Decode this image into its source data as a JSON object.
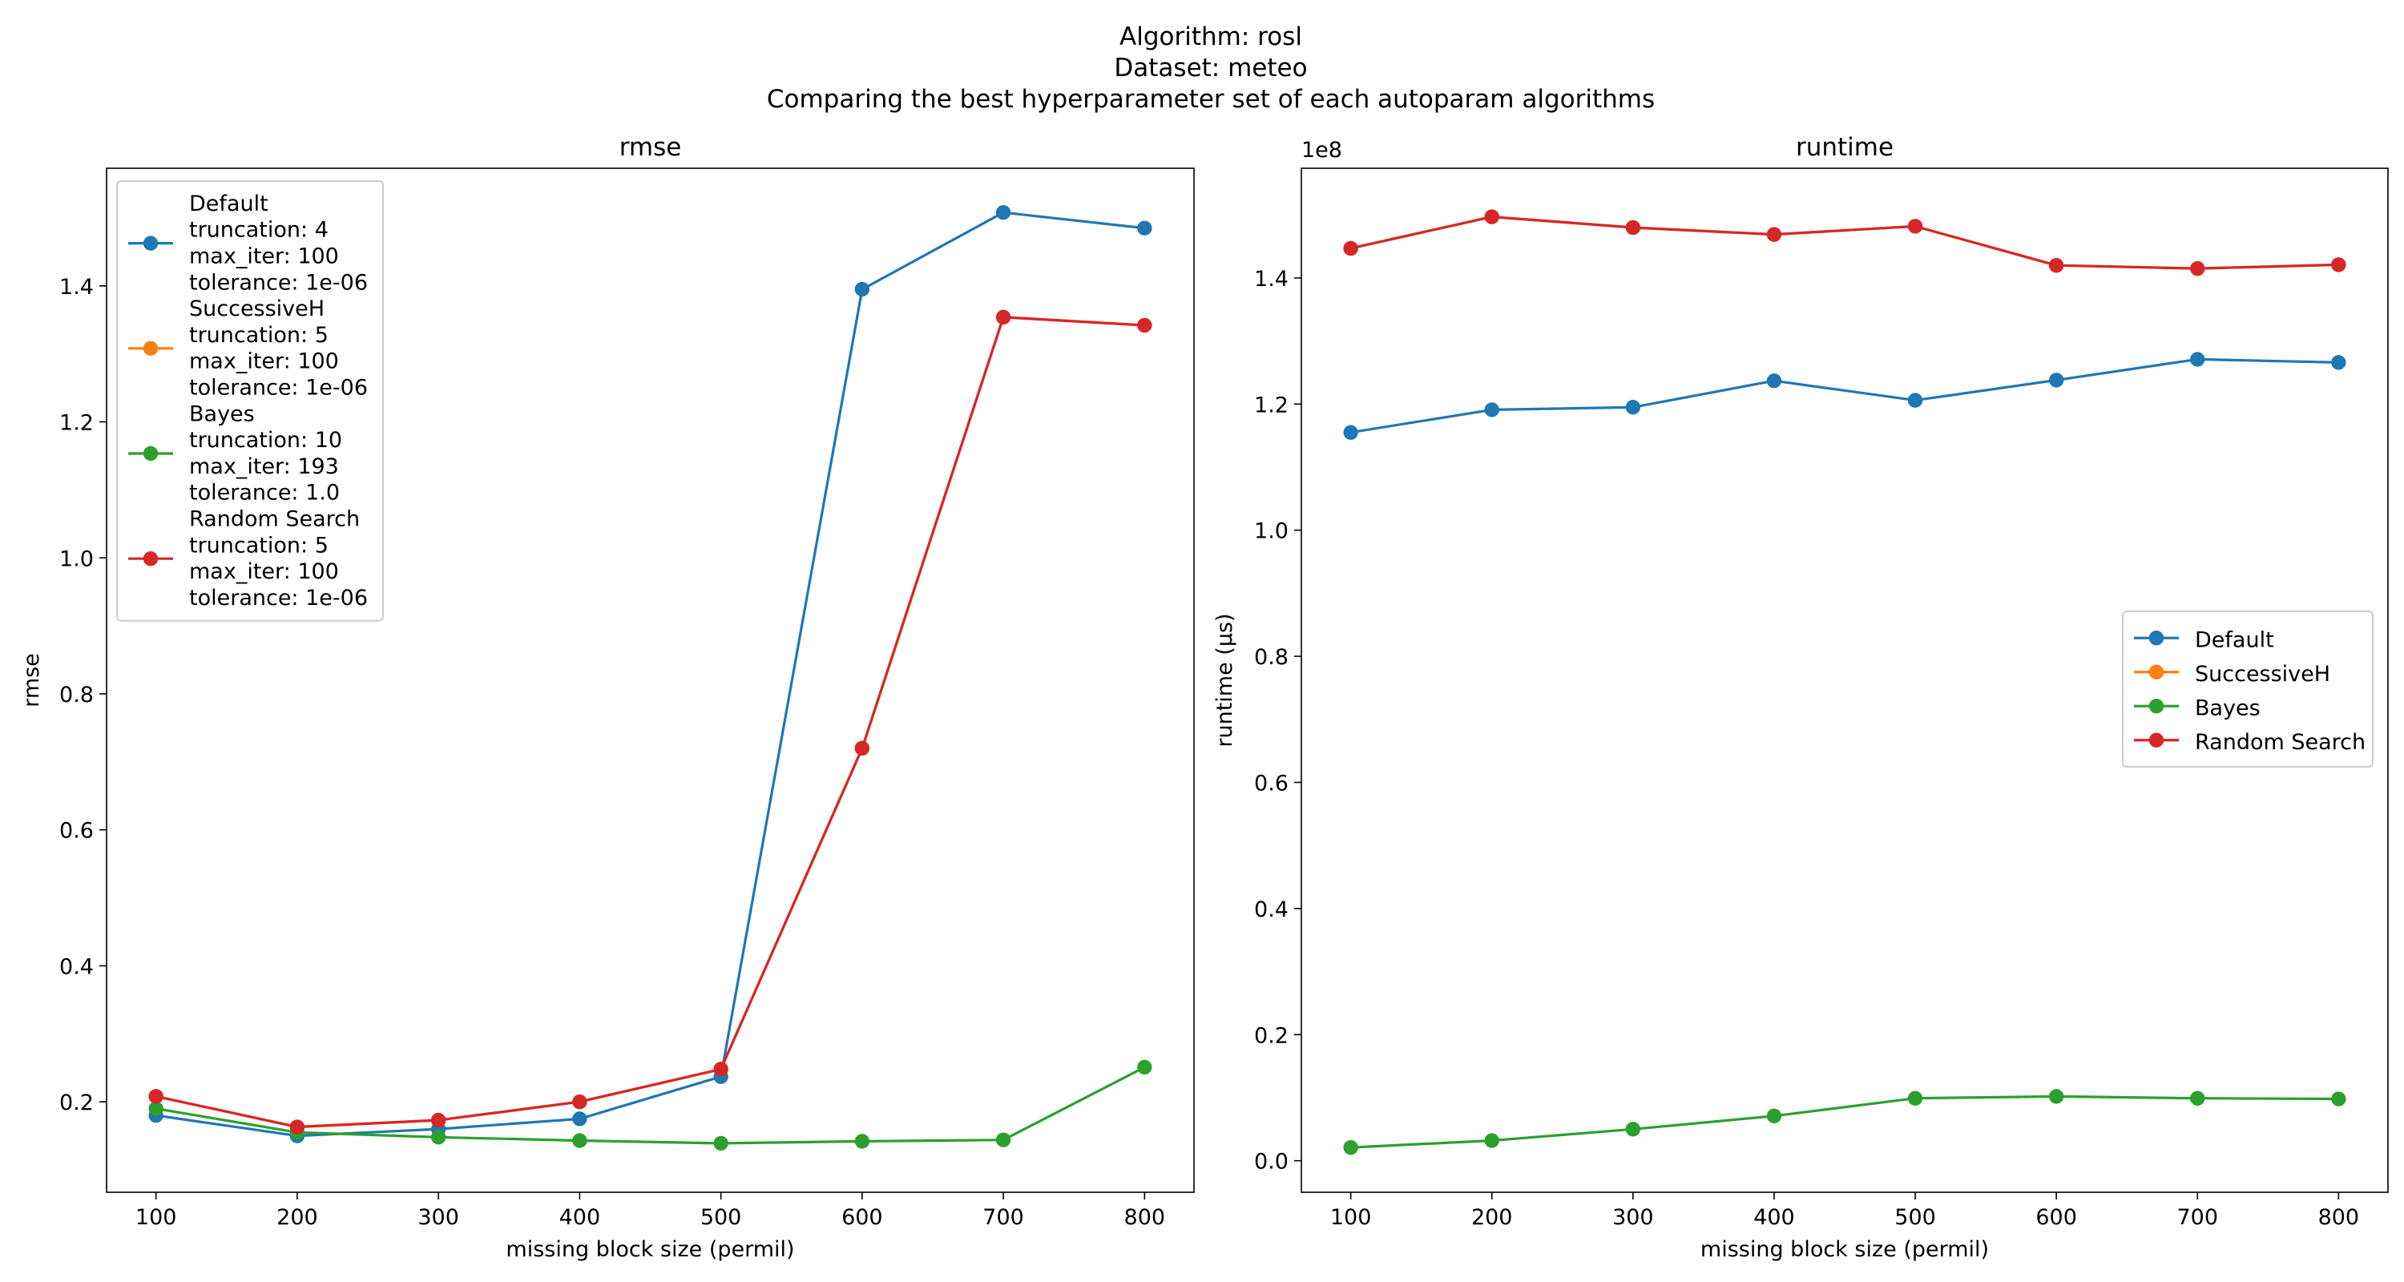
{
  "suptitle": {
    "line1": "Algorithm: rosl",
    "line2": "Dataset: meteo",
    "line3": "Comparing the best hyperparameter set of each autoparam algorithms"
  },
  "colors": {
    "default": "#1f77b4",
    "successiveh": "#ff7f0e",
    "bayes": "#2ca02c",
    "random_search": "#d62728"
  },
  "chart_data": [
    {
      "type": "line",
      "title": "rmse",
      "xlabel": "missing block size (permil)",
      "ylabel": "rmse",
      "x": [
        100,
        200,
        300,
        400,
        500,
        600,
        700,
        800
      ],
      "xticks": [
        "100",
        "200",
        "300",
        "400",
        "500",
        "600",
        "700",
        "800"
      ],
      "yticks": [
        "0.2",
        "0.4",
        "0.6",
        "0.8",
        "1.0",
        "1.2",
        "1.4"
      ],
      "xlim": [
        65,
        835
      ],
      "ylim": [
        0.067,
        1.573
      ],
      "grid": false,
      "legend_position": "upper-left",
      "series": [
        {
          "name": "Default",
          "legend_lines": [
            "Default",
            "truncation: 4",
            "max_iter: 100",
            "tolerance: 1e-06"
          ],
          "color": "#1f77b4",
          "values": [
            0.18,
            0.15,
            0.16,
            0.175,
            0.237,
            1.395,
            1.508,
            1.485
          ]
        },
        {
          "name": "SuccessiveH",
          "legend_lines": [
            "SuccessiveH",
            "truncation: 5",
            "max_iter: 100",
            "tolerance: 1e-06"
          ],
          "color": "#ff7f0e",
          "values": [
            0.208,
            0.163,
            0.173,
            0.2,
            0.248,
            0.72,
            1.354,
            1.342
          ]
        },
        {
          "name": "Bayes",
          "legend_lines": [
            "Bayes",
            "truncation: 10",
            "max_iter: 193",
            "tolerance: 1.0"
          ],
          "color": "#2ca02c",
          "values": [
            0.19,
            0.155,
            0.148,
            0.143,
            0.139,
            0.142,
            0.144,
            0.251
          ]
        },
        {
          "name": "Random Search",
          "legend_lines": [
            "Random Search",
            "truncation: 5",
            "max_iter: 100",
            "tolerance: 1e-06"
          ],
          "color": "#d62728",
          "values": [
            0.208,
            0.163,
            0.173,
            0.2,
            0.248,
            0.72,
            1.354,
            1.342
          ]
        }
      ]
    },
    {
      "type": "line",
      "title": "runtime",
      "xlabel": "missing block size (permil)",
      "ylabel": "runtime (µs)",
      "offset_label": "1e8",
      "x": [
        100,
        200,
        300,
        400,
        500,
        600,
        700,
        800
      ],
      "xticks": [
        "100",
        "200",
        "300",
        "400",
        "500",
        "600",
        "700",
        "800"
      ],
      "yticks": [
        "0.0",
        "0.2",
        "0.4",
        "0.6",
        "0.8",
        "1.0",
        "1.2",
        "1.4"
      ],
      "xlim": [
        65,
        835
      ],
      "ylim": [
        -0.05,
        1.574
      ],
      "grid": false,
      "legend_position": "center-right",
      "series": [
        {
          "name": "Default",
          "color": "#1f77b4",
          "values": [
            1.155,
            1.191,
            1.195,
            1.237,
            1.206,
            1.238,
            1.271,
            1.266
          ]
        },
        {
          "name": "SuccessiveH",
          "color": "#ff7f0e",
          "values": [
            1.447,
            1.497,
            1.48,
            1.469,
            1.482,
            1.42,
            1.415,
            1.421
          ]
        },
        {
          "name": "Bayes",
          "color": "#2ca02c",
          "values": [
            0.021,
            0.032,
            0.05,
            0.071,
            0.099,
            0.102,
            0.099,
            0.098
          ]
        },
        {
          "name": "Random Search",
          "color": "#d62728",
          "values": [
            1.447,
            1.497,
            1.48,
            1.469,
            1.482,
            1.42,
            1.415,
            1.421
          ]
        }
      ]
    }
  ]
}
